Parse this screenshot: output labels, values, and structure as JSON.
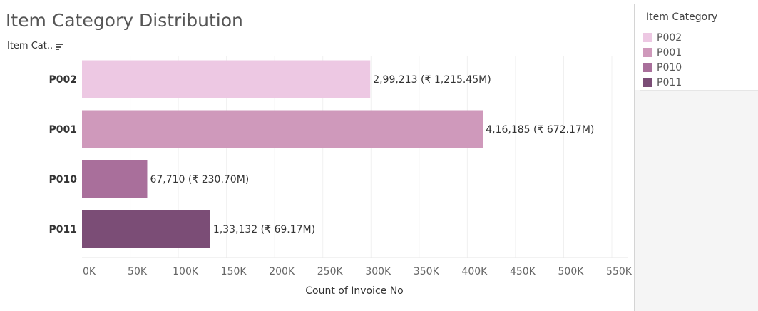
{
  "chart_data": {
    "type": "bar",
    "orientation": "horizontal",
    "title": "Item Category Distribution",
    "row_header": "Item Cat..",
    "xlabel": "Count of Invoice No",
    "ylabel": "",
    "xlim": [
      0,
      550000
    ],
    "xticks": [
      0,
      50000,
      100000,
      150000,
      200000,
      250000,
      300000,
      350000,
      400000,
      450000,
      500000,
      550000
    ],
    "xtick_labels": [
      "0K",
      "50K",
      "100K",
      "150K",
      "200K",
      "250K",
      "300K",
      "350K",
      "400K",
      "450K",
      "500K",
      "550K"
    ],
    "categories": [
      "P002",
      "P001",
      "P010",
      "P011"
    ],
    "values": [
      299213,
      416185,
      67710,
      133132
    ],
    "data_labels": [
      "2,99,213 (₹ 1,215.45M)",
      "4,16,185 (₹ 672.17M)",
      "67,710 (₹ 230.70M)",
      "1,33,132 (₹ 69.17M)"
    ],
    "colors": [
      "#edc8e3",
      "#cf99bb",
      "#a96f9b",
      "#7b4d76"
    ],
    "grid": "vertical",
    "legend": {
      "title": "Item Category",
      "placement": "top-right",
      "items": [
        "P002",
        "P001",
        "P010",
        "P011"
      ]
    }
  },
  "icons": {
    "sort": "sort-descending-icon"
  }
}
